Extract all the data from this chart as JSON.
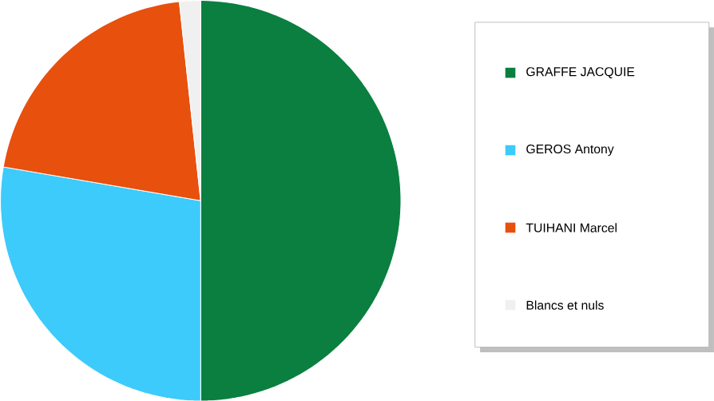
{
  "chart_data": {
    "type": "pie",
    "categories": [
      "GRAFFE JACQUIE",
      "GEROS Antony",
      "TUIHANI Marcel",
      "Blancs et nuls"
    ],
    "values": [
      50,
      27.7,
      20.6,
      1.7
    ],
    "colors": [
      "#0a7f3f",
      "#3ccbfb",
      "#e8500e",
      "#f0f0f0"
    ],
    "legend": "right"
  }
}
